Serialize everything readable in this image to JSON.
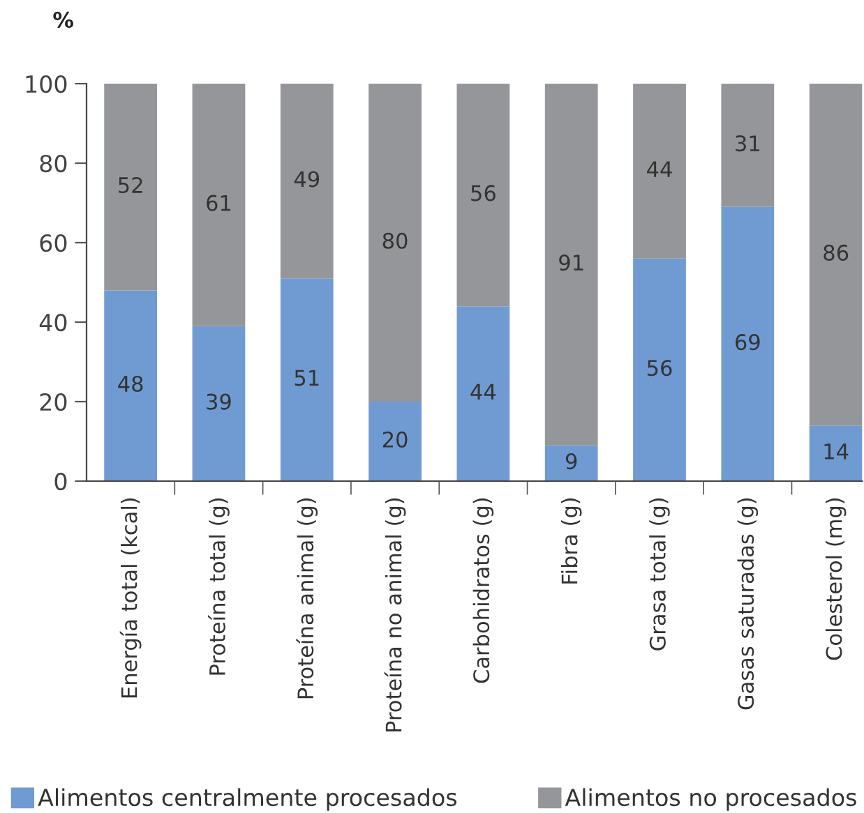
{
  "chart_data": {
    "type": "bar",
    "stacked": true,
    "ylabel": "%",
    "categories": [
      "Energía total (kcal)",
      "Proteína total (g)",
      "Proteína animal (g)",
      "Proteína no animal (g)",
      "Carbohidratos (g)",
      "Fibra (g)",
      "Grasa total (g)",
      "Gasas saturadas (g)",
      "Colesterol (mg)"
    ],
    "series": [
      {
        "name": "Alimentos centralmente procesados",
        "color": "#709bd2",
        "values": [
          48,
          39,
          51,
          20,
          44,
          9,
          56,
          69,
          14
        ]
      },
      {
        "name": "Alimentos no procesados",
        "color": "#959699",
        "values": [
          52,
          61,
          49,
          80,
          56,
          91,
          44,
          31,
          86
        ]
      }
    ],
    "ylim": [
      0,
      100
    ],
    "yticks": [
      0,
      20,
      40,
      60,
      80,
      100
    ],
    "data_labels": true,
    "legend": "bottom"
  }
}
